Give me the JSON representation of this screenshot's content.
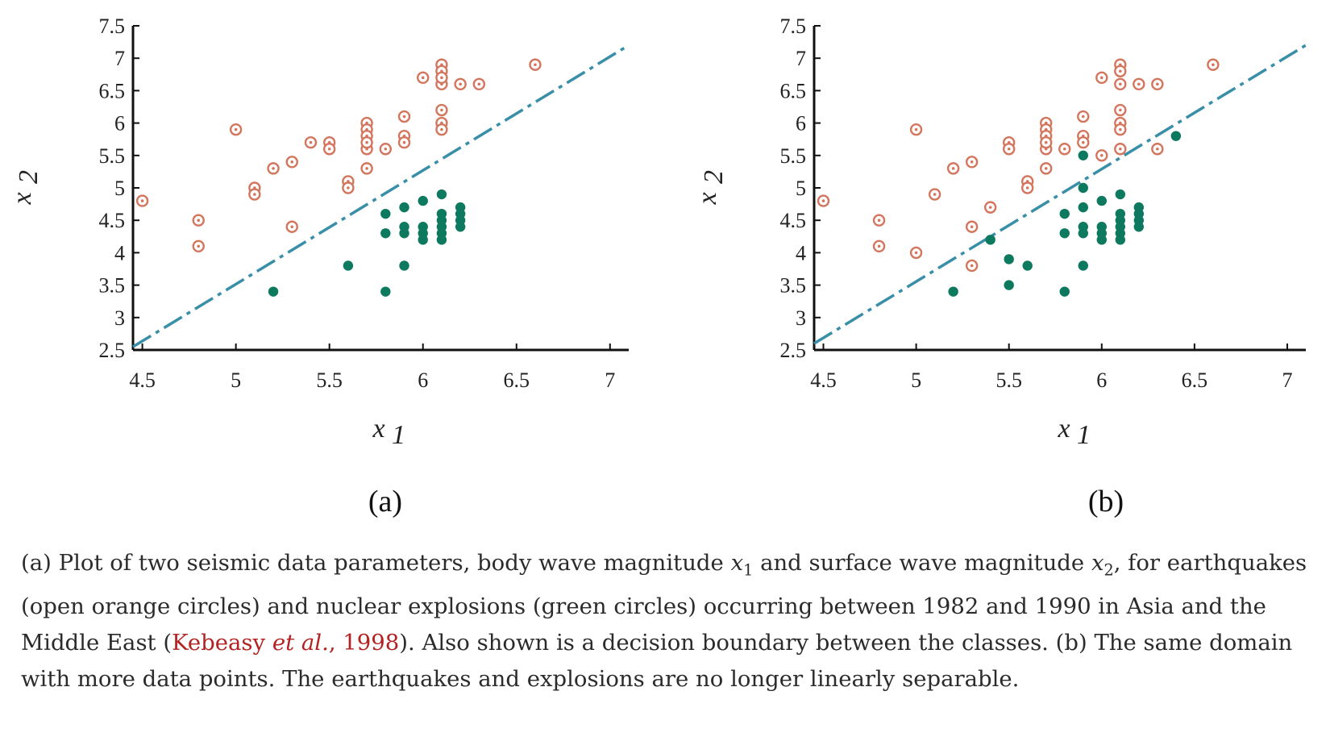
{
  "chart_data": [
    {
      "type": "scatter",
      "panel_label": "(a)",
      "xlabel": "x",
      "xlabel_sub": "1",
      "ylabel": "x",
      "ylabel_sub": "2",
      "xlim": [
        4.45,
        7.1
      ],
      "ylim": [
        2.5,
        7.5
      ],
      "xticks": [
        "4.5",
        "5",
        "5.5",
        "6",
        "6.5",
        "7"
      ],
      "yticks": [
        "2.5",
        "3",
        "3.5",
        "4",
        "4.5",
        "5",
        "5.5",
        "6",
        "6.5",
        "7",
        "7.5"
      ],
      "grid": false,
      "boundary": {
        "x": [
          4.45,
          7.1
        ],
        "y": [
          2.55,
          7.2
        ]
      },
      "series": [
        {
          "marker": "open-circle",
          "color": "#d4765e",
          "x": [
            4.5,
            4.8,
            4.8,
            5.0,
            5.1,
            5.1,
            5.2,
            5.3,
            5.3,
            5.4,
            5.5,
            5.5,
            5.6,
            5.6,
            5.7,
            5.7,
            5.7,
            5.7,
            5.7,
            5.7,
            5.8,
            5.9,
            5.9,
            5.9,
            6.0,
            6.1,
            6.1,
            6.1,
            6.1,
            6.1,
            6.1,
            6.1,
            6.2,
            6.3,
            6.6
          ],
          "y": [
            4.8,
            4.5,
            4.1,
            5.9,
            5.0,
            4.9,
            5.3,
            5.4,
            4.4,
            5.7,
            5.7,
            5.6,
            5.1,
            5.0,
            6.0,
            5.9,
            5.8,
            5.6,
            5.3,
            5.7,
            5.6,
            6.1,
            5.8,
            5.7,
            6.7,
            6.9,
            6.8,
            6.6,
            6.2,
            6.0,
            5.9,
            6.7,
            6.6,
            6.6,
            6.9
          ]
        },
        {
          "marker": "filled-circle",
          "color": "#0d7a5f",
          "x": [
            5.2,
            5.6,
            5.8,
            5.8,
            5.8,
            5.9,
            5.9,
            5.9,
            5.9,
            6.0,
            6.0,
            6.0,
            6.0,
            6.1,
            6.1,
            6.1,
            6.1,
            6.1,
            6.1,
            6.2,
            6.2,
            6.2,
            6.2
          ],
          "y": [
            3.4,
            3.8,
            4.6,
            4.3,
            3.4,
            4.7,
            4.4,
            4.3,
            3.8,
            4.8,
            4.4,
            4.3,
            4.2,
            4.9,
            4.6,
            4.5,
            4.4,
            4.3,
            4.2,
            4.7,
            4.6,
            4.5,
            4.4
          ]
        }
      ]
    },
    {
      "type": "scatter",
      "panel_label": "(b)",
      "xlabel": "x",
      "xlabel_sub": "1",
      "ylabel": "x",
      "ylabel_sub": "2",
      "xlim": [
        4.45,
        7.1
      ],
      "ylim": [
        2.5,
        7.5
      ],
      "xticks": [
        "4.5",
        "5",
        "5.5",
        "6",
        "6.5",
        "7"
      ],
      "yticks": [
        "2.5",
        "3",
        "3.5",
        "4",
        "4.5",
        "5",
        "5.5",
        "6",
        "6.5",
        "7",
        "7.5"
      ],
      "grid": false,
      "boundary": {
        "x": [
          4.45,
          7.1
        ],
        "y": [
          2.6,
          7.2
        ]
      },
      "series": [
        {
          "marker": "open-circle",
          "color": "#d4765e",
          "x": [
            4.5,
            4.8,
            4.8,
            5.0,
            5.0,
            5.1,
            5.2,
            5.3,
            5.3,
            5.3,
            5.4,
            5.5,
            5.5,
            5.6,
            5.6,
            5.7,
            5.7,
            5.7,
            5.7,
            5.7,
            5.7,
            5.8,
            5.9,
            5.9,
            5.9,
            6.0,
            6.0,
            6.1,
            6.1,
            6.1,
            6.1,
            6.1,
            6.1,
            6.1,
            6.2,
            6.3,
            6.3,
            6.6
          ],
          "y": [
            4.8,
            4.5,
            4.1,
            5.9,
            4.0,
            4.9,
            5.3,
            5.4,
            4.4,
            3.8,
            4.7,
            5.7,
            5.6,
            5.1,
            5.0,
            6.0,
            5.9,
            5.8,
            5.6,
            5.3,
            5.7,
            5.6,
            6.1,
            5.8,
            5.7,
            6.7,
            5.5,
            6.9,
            6.8,
            6.6,
            6.2,
            6.0,
            5.9,
            5.6,
            6.6,
            6.6,
            5.6,
            6.9
          ]
        },
        {
          "marker": "filled-circle",
          "color": "#0d7a5f",
          "x": [
            5.2,
            5.4,
            5.5,
            5.5,
            5.6,
            5.8,
            5.8,
            5.8,
            5.9,
            5.9,
            5.9,
            5.9,
            5.9,
            5.9,
            6.0,
            6.0,
            6.0,
            6.0,
            6.1,
            6.1,
            6.1,
            6.1,
            6.1,
            6.1,
            6.2,
            6.2,
            6.2,
            6.2,
            6.4
          ],
          "y": [
            3.4,
            4.2,
            3.9,
            3.5,
            3.8,
            4.6,
            4.3,
            3.4,
            5.5,
            5.0,
            4.7,
            4.4,
            4.3,
            3.8,
            4.8,
            4.4,
            4.3,
            4.2,
            4.9,
            4.6,
            4.5,
            4.4,
            4.3,
            4.2,
            4.7,
            4.6,
            4.5,
            4.4,
            5.8
          ]
        }
      ]
    }
  ],
  "caption": {
    "part1": "(a) Plot of two seismic data parameters, body wave magnitude ",
    "var1": "x",
    "var1_sub": "1",
    "part2": " and surface wave magnitude ",
    "var2": "x",
    "var2_sub": "2",
    "part3": ", for earthquakes (open orange circles) and nuclear explosions (green circles) occurring between 1982 and 1990 in Asia and the Middle East (",
    "cite_name": "Kebeasy ",
    "cite_etal": "et al.",
    "cite_year": ", 1998",
    "part4": "). Also shown is a decision boundary between the classes. (b) The same domain with more data points. The earthquakes and explosions are no longer linearly separable."
  },
  "colors": {
    "earthquake": "#d4765e",
    "explosion": "#0d7a5f",
    "boundary": "#3a8fa8",
    "citation": "#b22222"
  }
}
